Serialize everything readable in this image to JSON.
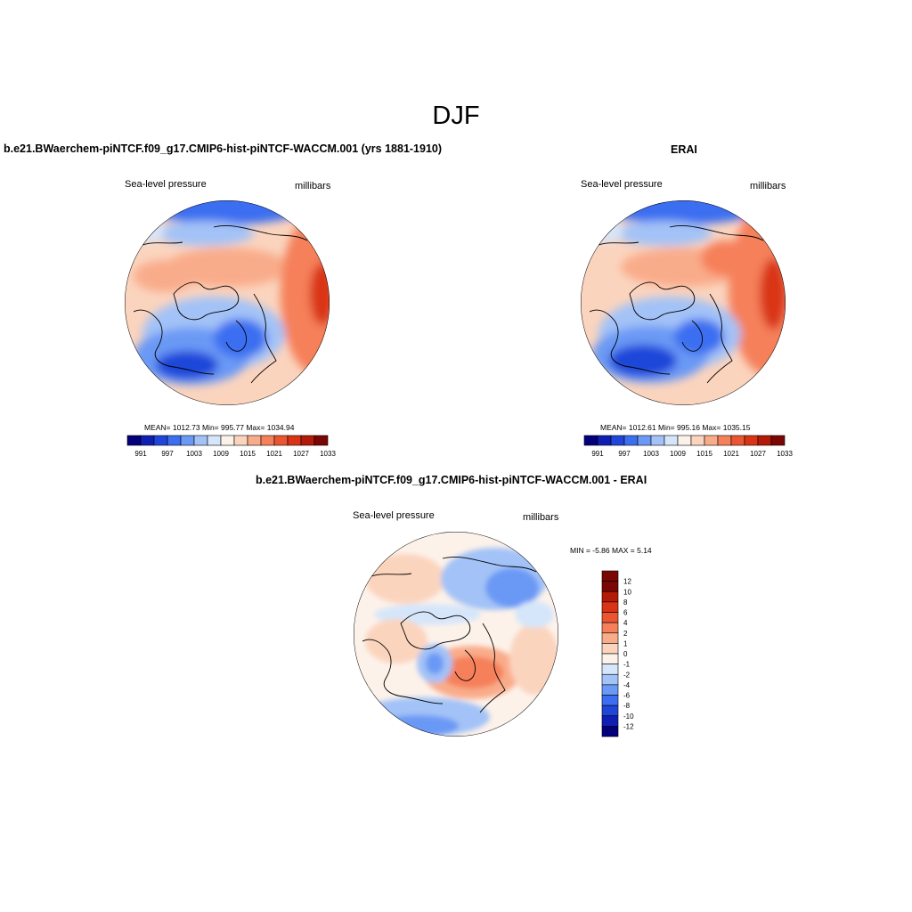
{
  "figure": {
    "season_title": "DJF",
    "panels": [
      {
        "title": "b.e21.BWaerchem-piNTCF.f09_g17.CMIP6-hist-piNTCF-WACCM.001 (yrs 1881-1910)",
        "left_label": "Sea-level pressure",
        "right_label": "millibars",
        "stats": "MEAN= 1012.73  Min= 995.77  Max= 1034.94",
        "colorbar_labels": [
          "991",
          "997",
          "1003",
          "1009",
          "1015",
          "1021",
          "1027",
          "1033"
        ]
      },
      {
        "title": "ERAI",
        "left_label": "Sea-level pressure",
        "right_label": "millibars",
        "stats": "MEAN= 1012.61  Min= 995.16  Max= 1035.15",
        "colorbar_labels": [
          "991",
          "997",
          "1003",
          "1009",
          "1015",
          "1021",
          "1027",
          "1033"
        ]
      },
      {
        "title": "b.e21.BWaerchem-piNTCF.f09_g17.CMIP6-hist-piNTCF-WACCM.001 - ERAI",
        "left_label": "Sea-level pressure",
        "right_label": "millibars",
        "stats": "MIN =  -5.86 MAX =   5.14",
        "colorbar_labels": [
          "12",
          "10",
          "8",
          "6",
          "4",
          "2",
          "1",
          "0",
          "-1",
          "-2",
          "-4",
          "-6",
          "-8",
          "-10",
          "-12"
        ]
      }
    ],
    "colors": {
      "abs_palette": [
        "#02007a",
        "#0f1fb3",
        "#1f46d9",
        "#3b6ef0",
        "#6b99f5",
        "#a3c2f7",
        "#d6e6fa",
        "#fdf2ea",
        "#fbd4be",
        "#f9ac8a",
        "#f5805a",
        "#ec5531",
        "#d93415",
        "#b31a07",
        "#7a0703"
      ],
      "diff_palette": [
        "#7a0703",
        "#b31a07",
        "#d93415",
        "#ec5531",
        "#f5805a",
        "#f9ac8a",
        "#fbd4be",
        "#fdf2ea",
        "#d6e6fa",
        "#a3c2f7",
        "#6b99f5",
        "#3b6ef0",
        "#1f46d9",
        "#0f1fb3",
        "#02007a"
      ]
    }
  }
}
